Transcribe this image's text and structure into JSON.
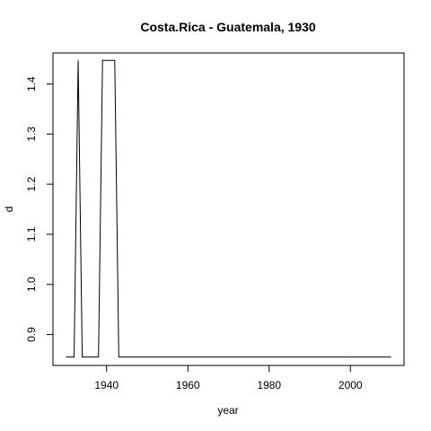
{
  "chart_data": {
    "type": "line",
    "title": "Costa.Rica - Guatemala, 1930",
    "xlabel": "year",
    "ylabel": "d",
    "xlim": [
      1926.8,
      2013.2
    ],
    "ylim": [
      0.8383,
      1.4618
    ],
    "xticks": [
      1940,
      1960,
      1980,
      2000
    ],
    "yticks": [
      0.9,
      1.0,
      1.1,
      1.2,
      1.3,
      1.4
    ],
    "ytick_labels": [
      "0.9",
      "1.0",
      "1.1",
      "1.2",
      "1.3",
      "1.4"
    ],
    "grid": false,
    "series": [
      {
        "x": [
          1930,
          1932,
          1933,
          1934,
          1938,
          1939,
          1941,
          1942,
          1943,
          2010
        ],
        "y": [
          0.855,
          0.855,
          1.447,
          0.855,
          0.855,
          1.447,
          1.447,
          1.447,
          0.855,
          0.855
        ]
      }
    ]
  }
}
